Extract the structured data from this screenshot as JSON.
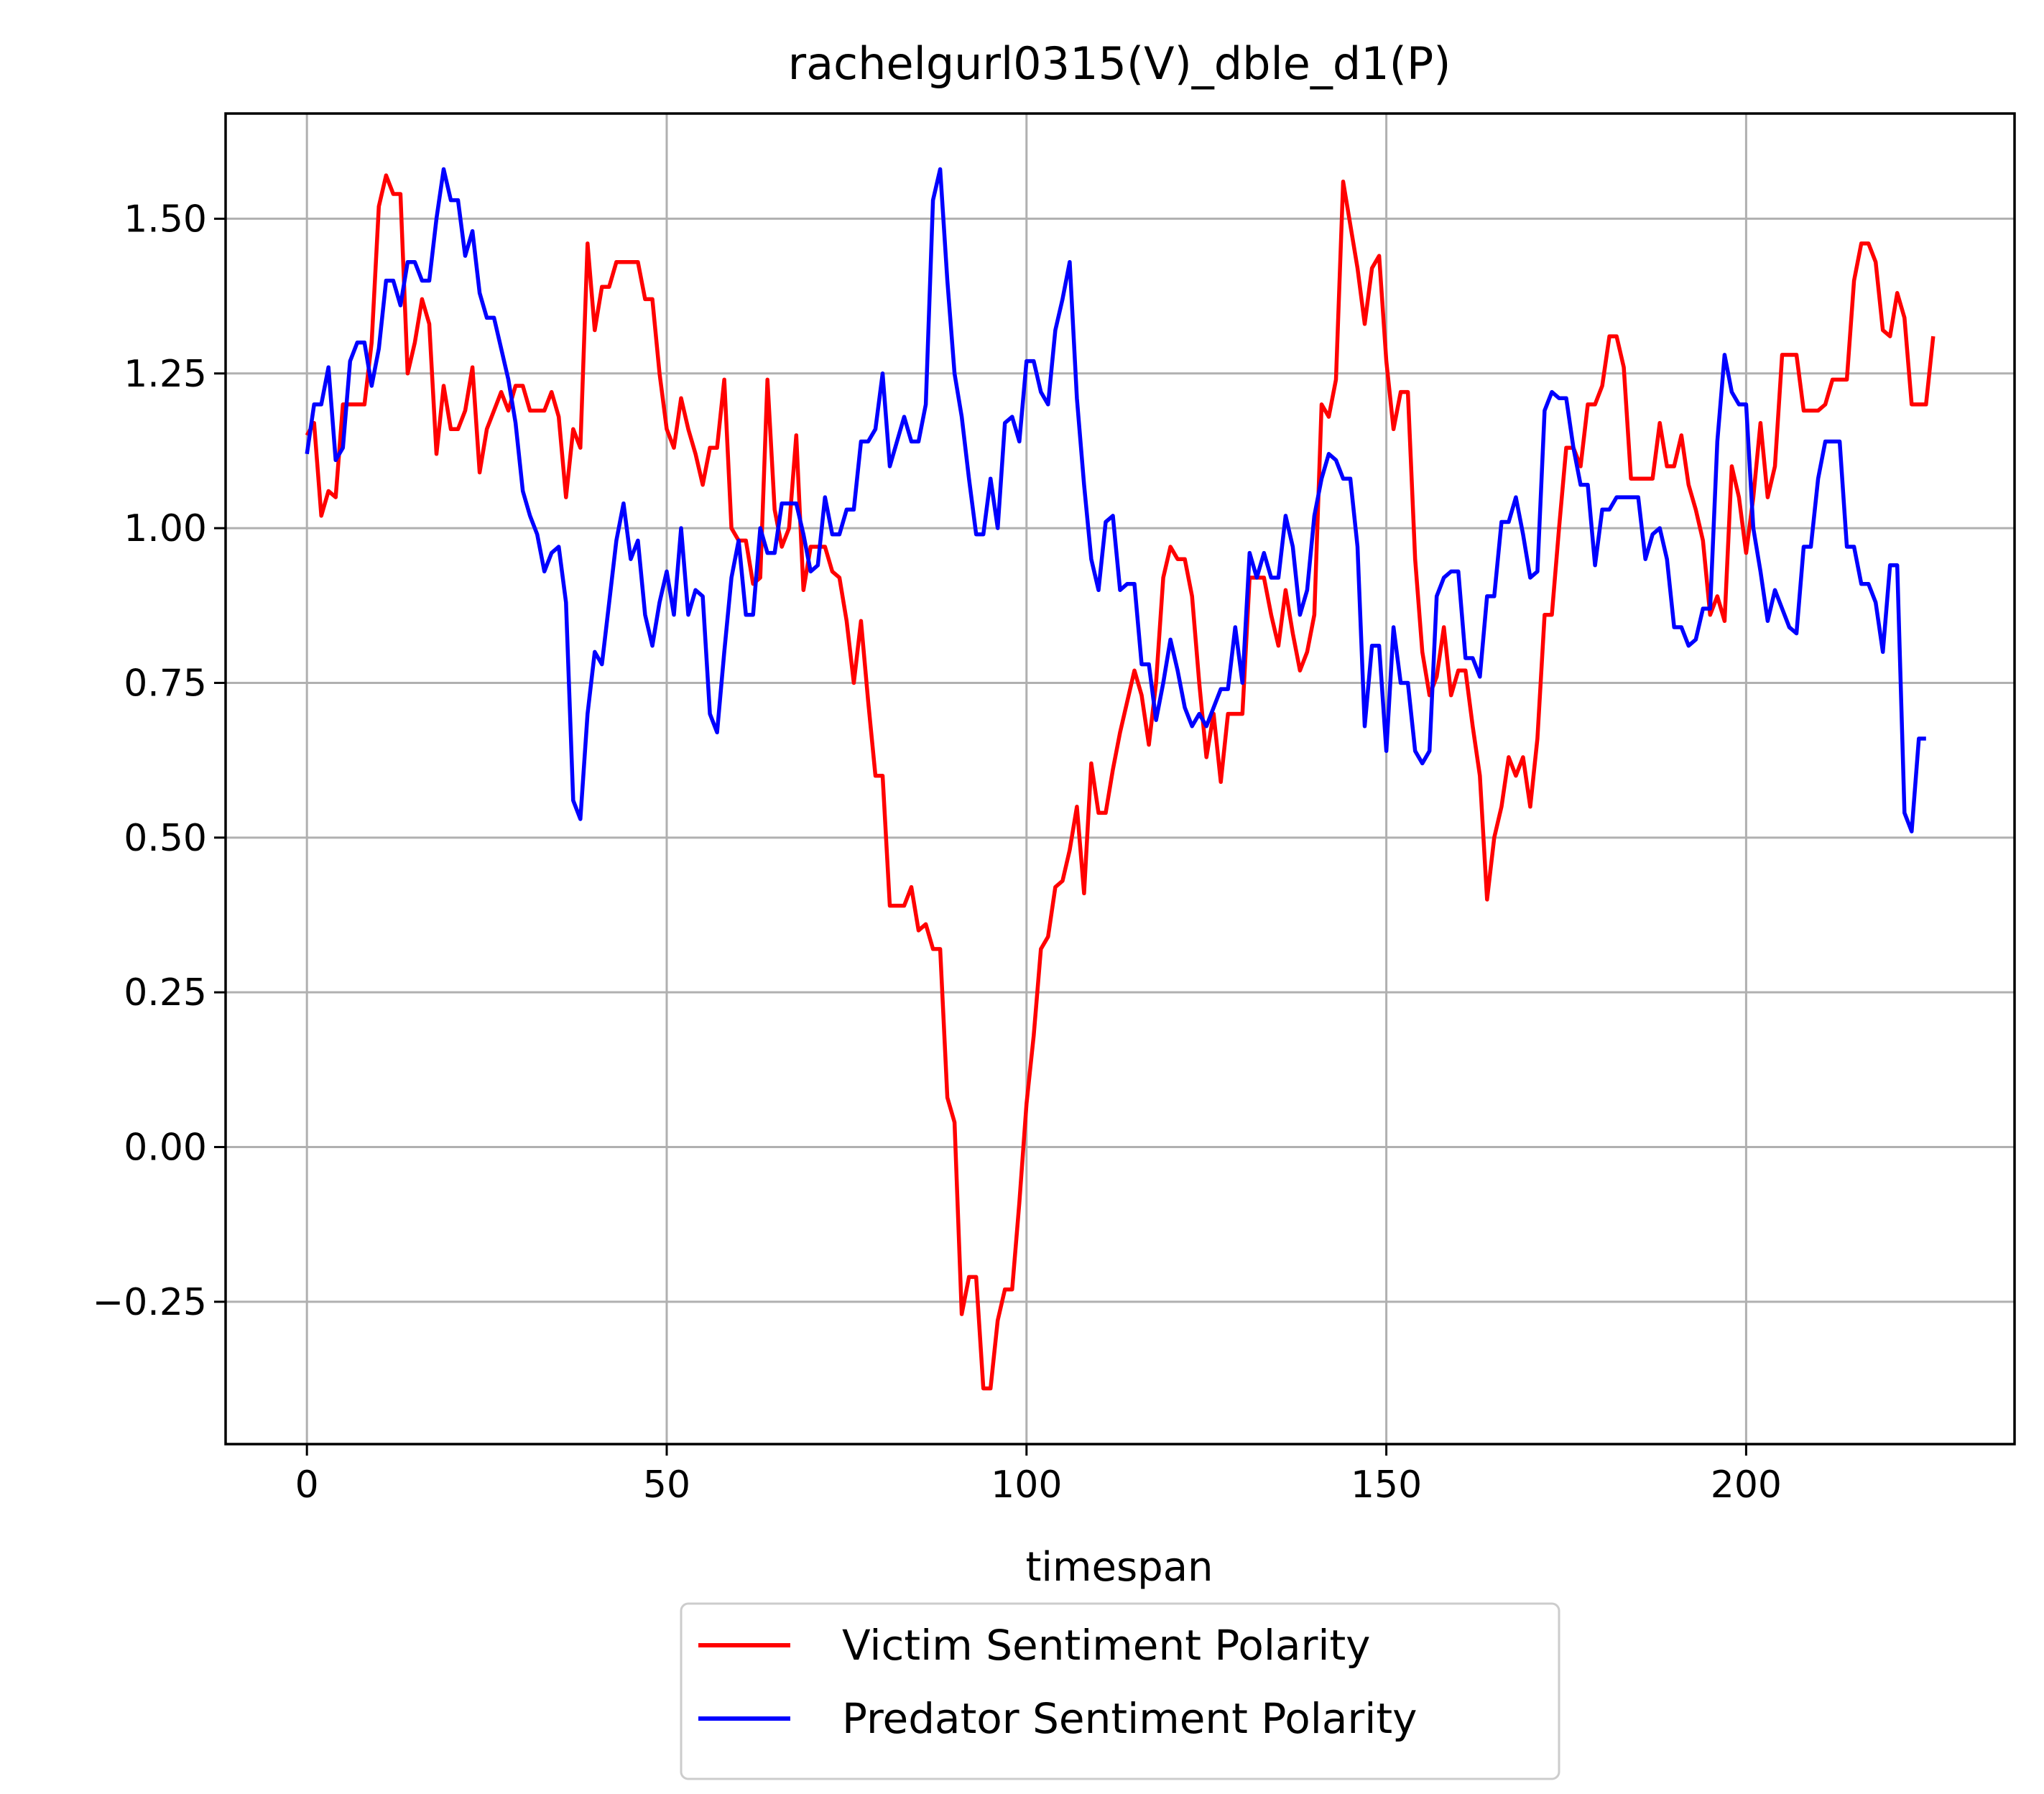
{
  "chart_data": {
    "type": "line",
    "title": "rachelgurl0315(V)_dble_d1(P)",
    "xlabel": "timespan",
    "ylabel": "",
    "xlim": [
      -11.3,
      237.3
    ],
    "ylim": [
      -0.48,
      1.67
    ],
    "x_ticks": [
      0,
      50,
      100,
      150,
      200
    ],
    "x_tick_labels": [
      "0",
      "50",
      "100",
      "150",
      "200"
    ],
    "y_ticks": [
      -0.25,
      0,
      0.25,
      0.5,
      0.75,
      1.0,
      1.25,
      1.5
    ],
    "y_tick_labels": [
      "−0.25",
      "0.00",
      "0.25",
      "0.50",
      "0.75",
      "1.00",
      "1.25",
      "1.50"
    ],
    "grid": true,
    "legend_position": "below",
    "series": [
      {
        "name": "Victim Sentiment Polarity",
        "color": "#ff0000",
        "values": [
          1.15,
          1.17,
          1.02,
          1.06,
          1.05,
          1.2,
          1.2,
          1.2,
          1.2,
          1.3,
          1.52,
          1.57,
          1.54,
          1.54,
          1.25,
          1.3,
          1.37,
          1.33,
          1.12,
          1.23,
          1.16,
          1.16,
          1.19,
          1.26,
          1.09,
          1.16,
          1.19,
          1.22,
          1.19,
          1.23,
          1.23,
          1.19,
          1.19,
          1.19,
          1.22,
          1.18,
          1.05,
          1.16,
          1.13,
          1.46,
          1.32,
          1.39,
          1.39,
          1.43,
          1.43,
          1.43,
          1.43,
          1.37,
          1.37,
          1.25,
          1.16,
          1.13,
          1.21,
          1.16,
          1.12,
          1.07,
          1.13,
          1.13,
          1.24,
          1.0,
          0.98,
          0.98,
          0.91,
          0.92,
          1.24,
          1.03,
          0.97,
          1.0,
          1.15,
          0.9,
          0.97,
          0.97,
          0.97,
          0.93,
          0.92,
          0.85,
          0.75,
          0.85,
          0.72,
          0.6,
          0.6,
          0.39,
          0.39,
          0.39,
          0.42,
          0.35,
          0.36,
          0.32,
          0.32,
          0.08,
          0.04,
          -0.27,
          -0.21,
          -0.21,
          -0.39,
          -0.39,
          -0.28,
          -0.23,
          -0.23,
          -0.09,
          0.07,
          0.18,
          0.32,
          0.34,
          0.42,
          0.43,
          0.48,
          0.55,
          0.41,
          0.62,
          0.54,
          0.54,
          0.61,
          0.67,
          0.72,
          0.77,
          0.73,
          0.65,
          0.75,
          0.92,
          0.97,
          0.95,
          0.95,
          0.89,
          0.75,
          0.63,
          0.7,
          0.59,
          0.7,
          0.7,
          0.7,
          0.92,
          0.92,
          0.92,
          0.86,
          0.81,
          0.9,
          0.83,
          0.77,
          0.8,
          0.86,
          1.2,
          1.18,
          1.24,
          1.56,
          1.49,
          1.42,
          1.33,
          1.42,
          1.44,
          1.27,
          1.16,
          1.22,
          1.22,
          0.95,
          0.8,
          0.73,
          0.76,
          0.84,
          0.73,
          0.77,
          0.77,
          0.68,
          0.6,
          0.4,
          0.5,
          0.55,
          0.63,
          0.6,
          0.63,
          0.55,
          0.66,
          0.86,
          0.86,
          1.0,
          1.13,
          1.13,
          1.1,
          1.2,
          1.2,
          1.23,
          1.31,
          1.31,
          1.26,
          1.08,
          1.08,
          1.08,
          1.08,
          1.17,
          1.1,
          1.1,
          1.15,
          1.07,
          1.03,
          0.98,
          0.86,
          0.89,
          0.85,
          1.1,
          1.05,
          0.96,
          1.05,
          1.17,
          1.05,
          1.1,
          1.28,
          1.28,
          1.28,
          1.19,
          1.19,
          1.19,
          1.2,
          1.24,
          1.24,
          1.24,
          1.4,
          1.46,
          1.46,
          1.43,
          1.32,
          1.31,
          1.38,
          1.34,
          1.2,
          1.2,
          1.2,
          1.31
        ]
      },
      {
        "name": "Predator Sentiment Polarity",
        "color": "#0000ff",
        "values": [
          1.12,
          1.2,
          1.2,
          1.26,
          1.11,
          1.13,
          1.27,
          1.3,
          1.3,
          1.23,
          1.29,
          1.4,
          1.4,
          1.36,
          1.43,
          1.43,
          1.4,
          1.4,
          1.5,
          1.58,
          1.53,
          1.53,
          1.44,
          1.48,
          1.38,
          1.34,
          1.34,
          1.29,
          1.24,
          1.17,
          1.06,
          1.02,
          0.99,
          0.93,
          0.96,
          0.97,
          0.88,
          0.56,
          0.53,
          0.7,
          0.8,
          0.78,
          0.88,
          0.98,
          1.04,
          0.95,
          0.98,
          0.86,
          0.81,
          0.88,
          0.93,
          0.86,
          1.0,
          0.86,
          0.9,
          0.89,
          0.7,
          0.67,
          0.8,
          0.92,
          0.98,
          0.86,
          0.86,
          1.0,
          0.96,
          0.96,
          1.04,
          1.04,
          1.04,
          0.99,
          0.93,
          0.94,
          1.05,
          0.99,
          0.99,
          1.03,
          1.03,
          1.14,
          1.14,
          1.16,
          1.25,
          1.1,
          1.14,
          1.18,
          1.14,
          1.14,
          1.2,
          1.53,
          1.58,
          1.4,
          1.25,
          1.18,
          1.08,
          0.99,
          0.99,
          1.08,
          1.0,
          1.17,
          1.18,
          1.14,
          1.27,
          1.27,
          1.22,
          1.2,
          1.32,
          1.37,
          1.43,
          1.21,
          1.07,
          0.95,
          0.9,
          1.01,
          1.02,
          0.9,
          0.91,
          0.91,
          0.78,
          0.78,
          0.69,
          0.75,
          0.82,
          0.77,
          0.71,
          0.68,
          0.7,
          0.68,
          0.71,
          0.74,
          0.74,
          0.84,
          0.75,
          0.96,
          0.92,
          0.96,
          0.92,
          0.92,
          1.02,
          0.97,
          0.86,
          0.9,
          1.02,
          1.08,
          1.12,
          1.11,
          1.08,
          1.08,
          0.97,
          0.68,
          0.81,
          0.81,
          0.64,
          0.84,
          0.75,
          0.75,
          0.64,
          0.62,
          0.64,
          0.89,
          0.92,
          0.93,
          0.93,
          0.79,
          0.79,
          0.76,
          0.89,
          0.89,
          1.01,
          1.01,
          1.05,
          0.99,
          0.92,
          0.93,
          1.19,
          1.22,
          1.21,
          1.21,
          1.13,
          1.07,
          1.07,
          0.94,
          1.03,
          1.03,
          1.05,
          1.05,
          1.05,
          1.05,
          0.95,
          0.99,
          1.0,
          0.95,
          0.84,
          0.84,
          0.81,
          0.82,
          0.87,
          0.87,
          1.14,
          1.28,
          1.22,
          1.2,
          1.2,
          1.0,
          0.93,
          0.85,
          0.9,
          0.87,
          0.84,
          0.83,
          0.97,
          0.97,
          1.08,
          1.14,
          1.14,
          1.14,
          0.97,
          0.97,
          0.91,
          0.91,
          0.88,
          0.8,
          0.94,
          0.94,
          0.54,
          0.51,
          0.66,
          0.66
        ]
      }
    ]
  }
}
